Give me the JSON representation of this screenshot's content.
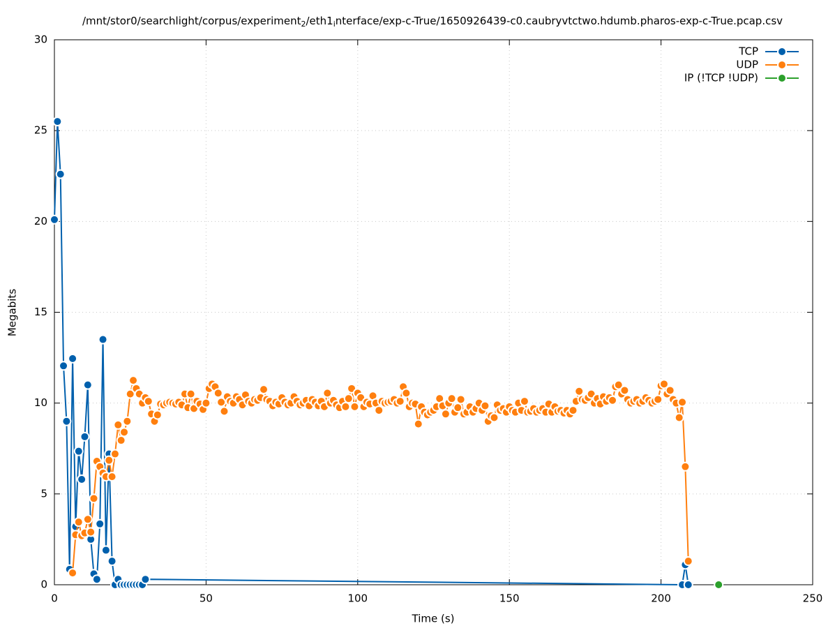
{
  "chart_data": {
    "type": "line",
    "title_parts": [
      "/mnt/stor0/searchlight/corpus/experiment",
      "2",
      "/eth1",
      "i",
      "nterface/exp-c-True/1650926439-c0.caubryvtctwo.hdumb.pharos-exp-c-True.pcap.csv"
    ],
    "xlabel": "Time (s)",
    "ylabel": "Megabits",
    "xlim": [
      0,
      250
    ],
    "xticks": [
      0,
      50,
      100,
      150,
      200,
      250
    ],
    "ylim": [
      0,
      30
    ],
    "yticks": [
      0,
      5,
      10,
      15,
      20,
      25,
      30
    ],
    "grid": true,
    "legend": "top right",
    "series": [
      {
        "name": "TCP",
        "color": "#0060ad",
        "x": [
          0,
          1,
          2,
          3,
          4,
          5,
          6,
          7,
          8,
          9,
          10,
          11,
          12,
          13,
          14,
          15,
          16,
          17,
          18,
          19,
          20,
          21,
          22,
          23,
          24,
          25,
          26,
          27,
          28,
          29,
          30,
          207,
          208,
          209
        ],
        "values": [
          20.1,
          25.5,
          22.6,
          12.05,
          9.0,
          0.85,
          12.45,
          3.2,
          7.35,
          5.8,
          8.15,
          11.0,
          2.5,
          0.6,
          0.3,
          3.35,
          13.5,
          1.9,
          7.2,
          1.3,
          0,
          0.3,
          0,
          0,
          0,
          0,
          0,
          0,
          0,
          0,
          0.3,
          0,
          1.1,
          0
        ]
      },
      {
        "name": "UDP",
        "color": "#ff7f0e",
        "x": [
          6,
          7,
          8,
          9,
          10,
          11,
          12,
          13,
          14,
          15,
          16,
          17,
          18,
          19,
          20,
          21,
          22,
          23,
          24,
          25,
          26,
          27,
          28,
          29,
          30,
          31,
          32,
          33,
          34,
          35,
          36,
          37,
          38,
          39,
          40,
          41,
          42,
          43,
          44,
          45,
          46,
          47,
          48,
          49,
          50,
          51,
          52,
          53,
          54,
          55,
          56,
          57,
          58,
          59,
          60,
          61,
          62,
          63,
          64,
          65,
          66,
          67,
          68,
          69,
          70,
          71,
          72,
          73,
          74,
          75,
          76,
          77,
          78,
          79,
          80,
          81,
          82,
          83,
          84,
          85,
          86,
          87,
          88,
          89,
          90,
          91,
          92,
          93,
          94,
          95,
          96,
          97,
          98,
          99,
          100,
          101,
          102,
          103,
          104,
          105,
          106,
          107,
          108,
          109,
          110,
          111,
          112,
          113,
          114,
          115,
          116,
          117,
          118,
          119,
          120,
          121,
          122,
          123,
          124,
          125,
          126,
          127,
          128,
          129,
          130,
          131,
          132,
          133,
          134,
          135,
          136,
          137,
          138,
          139,
          140,
          141,
          142,
          143,
          144,
          145,
          146,
          147,
          148,
          149,
          150,
          151,
          152,
          153,
          154,
          155,
          156,
          157,
          158,
          159,
          160,
          161,
          162,
          163,
          164,
          165,
          166,
          167,
          168,
          169,
          170,
          171,
          172,
          173,
          174,
          175,
          176,
          177,
          178,
          179,
          180,
          181,
          182,
          183,
          184,
          185,
          186,
          187,
          188,
          189,
          190,
          191,
          192,
          193,
          194,
          195,
          196,
          197,
          198,
          199,
          200,
          201,
          202,
          203,
          204,
          205,
          206,
          207,
          208,
          209
        ],
        "values": [
          0.65,
          2.75,
          3.45,
          2.7,
          2.85,
          3.6,
          2.9,
          4.75,
          6.8,
          6.5,
          6.15,
          5.95,
          6.85,
          5.95,
          7.2,
          8.8,
          7.95,
          8.4,
          9.0,
          10.5,
          11.25,
          10.8,
          10.5,
          10.0,
          10.3,
          10.1,
          9.4,
          9.0,
          9.35,
          9.95,
          9.9,
          10.0,
          10.05,
          10.0,
          9.95,
          10.05,
          9.9,
          10.5,
          9.75,
          10.5,
          9.7,
          10.1,
          9.95,
          9.65,
          10.0,
          10.8,
          11.05,
          10.9,
          10.55,
          10.05,
          9.55,
          10.35,
          10.1,
          10.0,
          10.35,
          10.2,
          9.9,
          10.45,
          10.1,
          10.0,
          10.2,
          10.15,
          10.3,
          10.75,
          10.2,
          10.1,
          9.85,
          10.05,
          9.95,
          10.3,
          10.05,
          9.9,
          10.0,
          10.35,
          10.1,
          9.9,
          10.0,
          10.15,
          9.85,
          10.2,
          10.05,
          9.85,
          10.1,
          9.8,
          10.55,
          10.0,
          10.15,
          9.9,
          9.75,
          10.1,
          9.8,
          10.25,
          10.8,
          9.8,
          10.55,
          10.3,
          9.8,
          10.05,
          9.95,
          10.4,
          10.0,
          9.6,
          10.1,
          10.0,
          10.05,
          10.1,
          10.2,
          10.0,
          10.1,
          10.9,
          10.55,
          9.8,
          10.0,
          9.95,
          8.85,
          9.8,
          9.5,
          9.35,
          9.5,
          9.6,
          9.8,
          10.25,
          9.85,
          9.4,
          10.0,
          10.25,
          9.5,
          9.75,
          10.2,
          9.4,
          9.5,
          9.8,
          9.5,
          9.7,
          10.0,
          9.6,
          9.85,
          9.0,
          9.3,
          9.2,
          9.9,
          9.6,
          9.7,
          9.5,
          9.8,
          9.6,
          9.5,
          10.0,
          9.6,
          10.1,
          9.5,
          9.55,
          9.7,
          9.5,
          9.6,
          9.7,
          9.5,
          9.95,
          9.5,
          9.8,
          9.55,
          9.6,
          9.45,
          9.6,
          9.4,
          9.6,
          10.1,
          10.65,
          10.2,
          10.15,
          10.3,
          10.5,
          10.0,
          10.25,
          9.95,
          10.35,
          10.1,
          10.3,
          10.15,
          10.9,
          11.0,
          10.5,
          10.7,
          10.2,
          10.0,
          10.1,
          10.2,
          10.0,
          10.1,
          10.3,
          10.15,
          10.0,
          10.1,
          10.2,
          10.95,
          11.05,
          10.5,
          10.7,
          10.2,
          10.0,
          9.2,
          10.05,
          6.5,
          1.3
        ]
      },
      {
        "name": "IP (!TCP  !UDP)",
        "color": "#2ca02c",
        "x": [
          219
        ],
        "values": [
          0
        ]
      }
    ]
  }
}
